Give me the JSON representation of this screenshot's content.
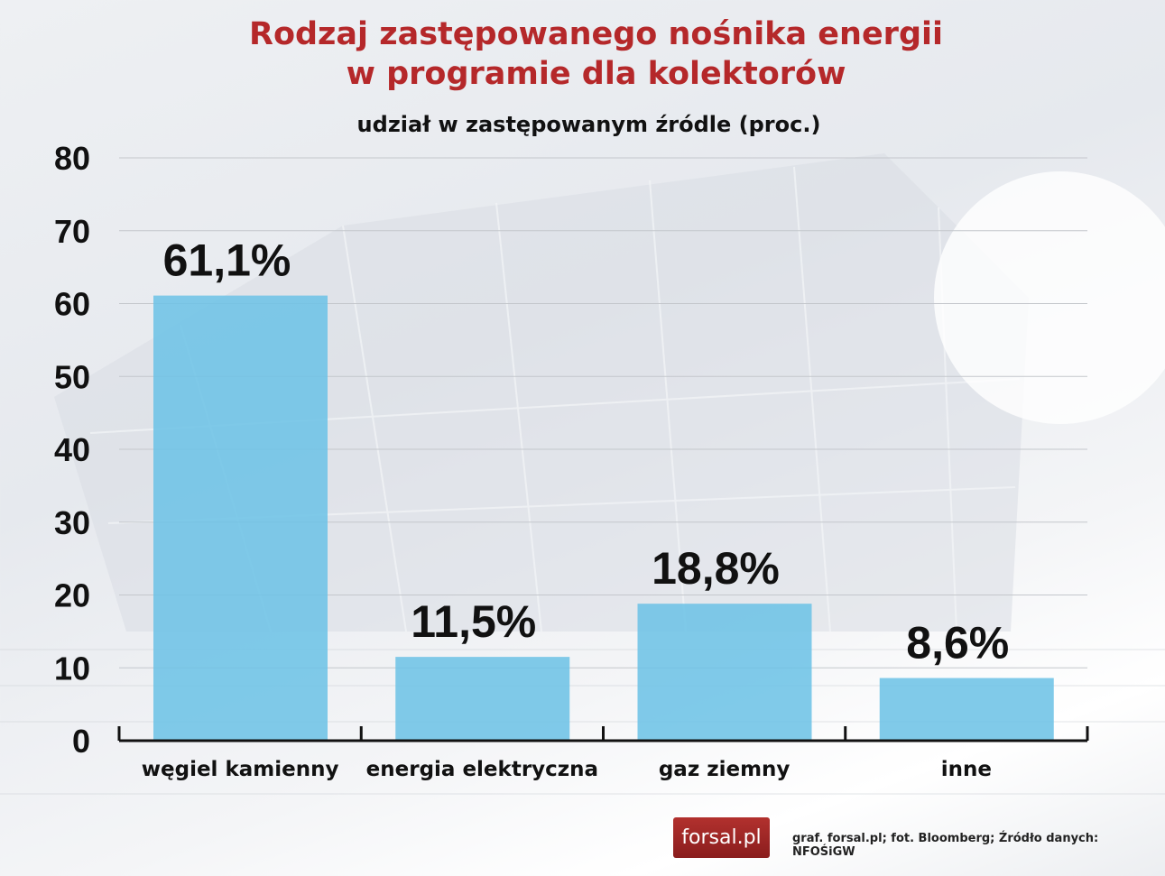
{
  "title_line1": "Rodzaj zastępowanego nośnika energii",
  "title_line2": "w programie dla kolektorów",
  "subtitle": "udział w zastępowanym źródle (proc.)",
  "logo_text": "forsal.pl",
  "credits": "graf. forsal.pl;   fot. Bloomberg;  Źródło danych: NFOŚiGW",
  "colors": {
    "bar": "#6ec3e6",
    "title": "#b5282a"
  },
  "chart_data": {
    "type": "bar",
    "title": "Rodzaj zastępowanego nośnika energii w programie dla kolektorów",
    "ylabel": "udział w zastępowanym źródle (proc.)",
    "categories": [
      "węgiel kamienny",
      "energia elektryczna",
      "gaz ziemny",
      "inne"
    ],
    "values": [
      61.1,
      11.5,
      18.8,
      8.6
    ],
    "data_labels": [
      "61,1%",
      "11,5%",
      "18,8%",
      "8,6%"
    ],
    "ylim": [
      0,
      80
    ],
    "yticks": [
      0,
      10,
      20,
      30,
      40,
      50,
      60,
      70,
      80
    ],
    "grid": true
  }
}
